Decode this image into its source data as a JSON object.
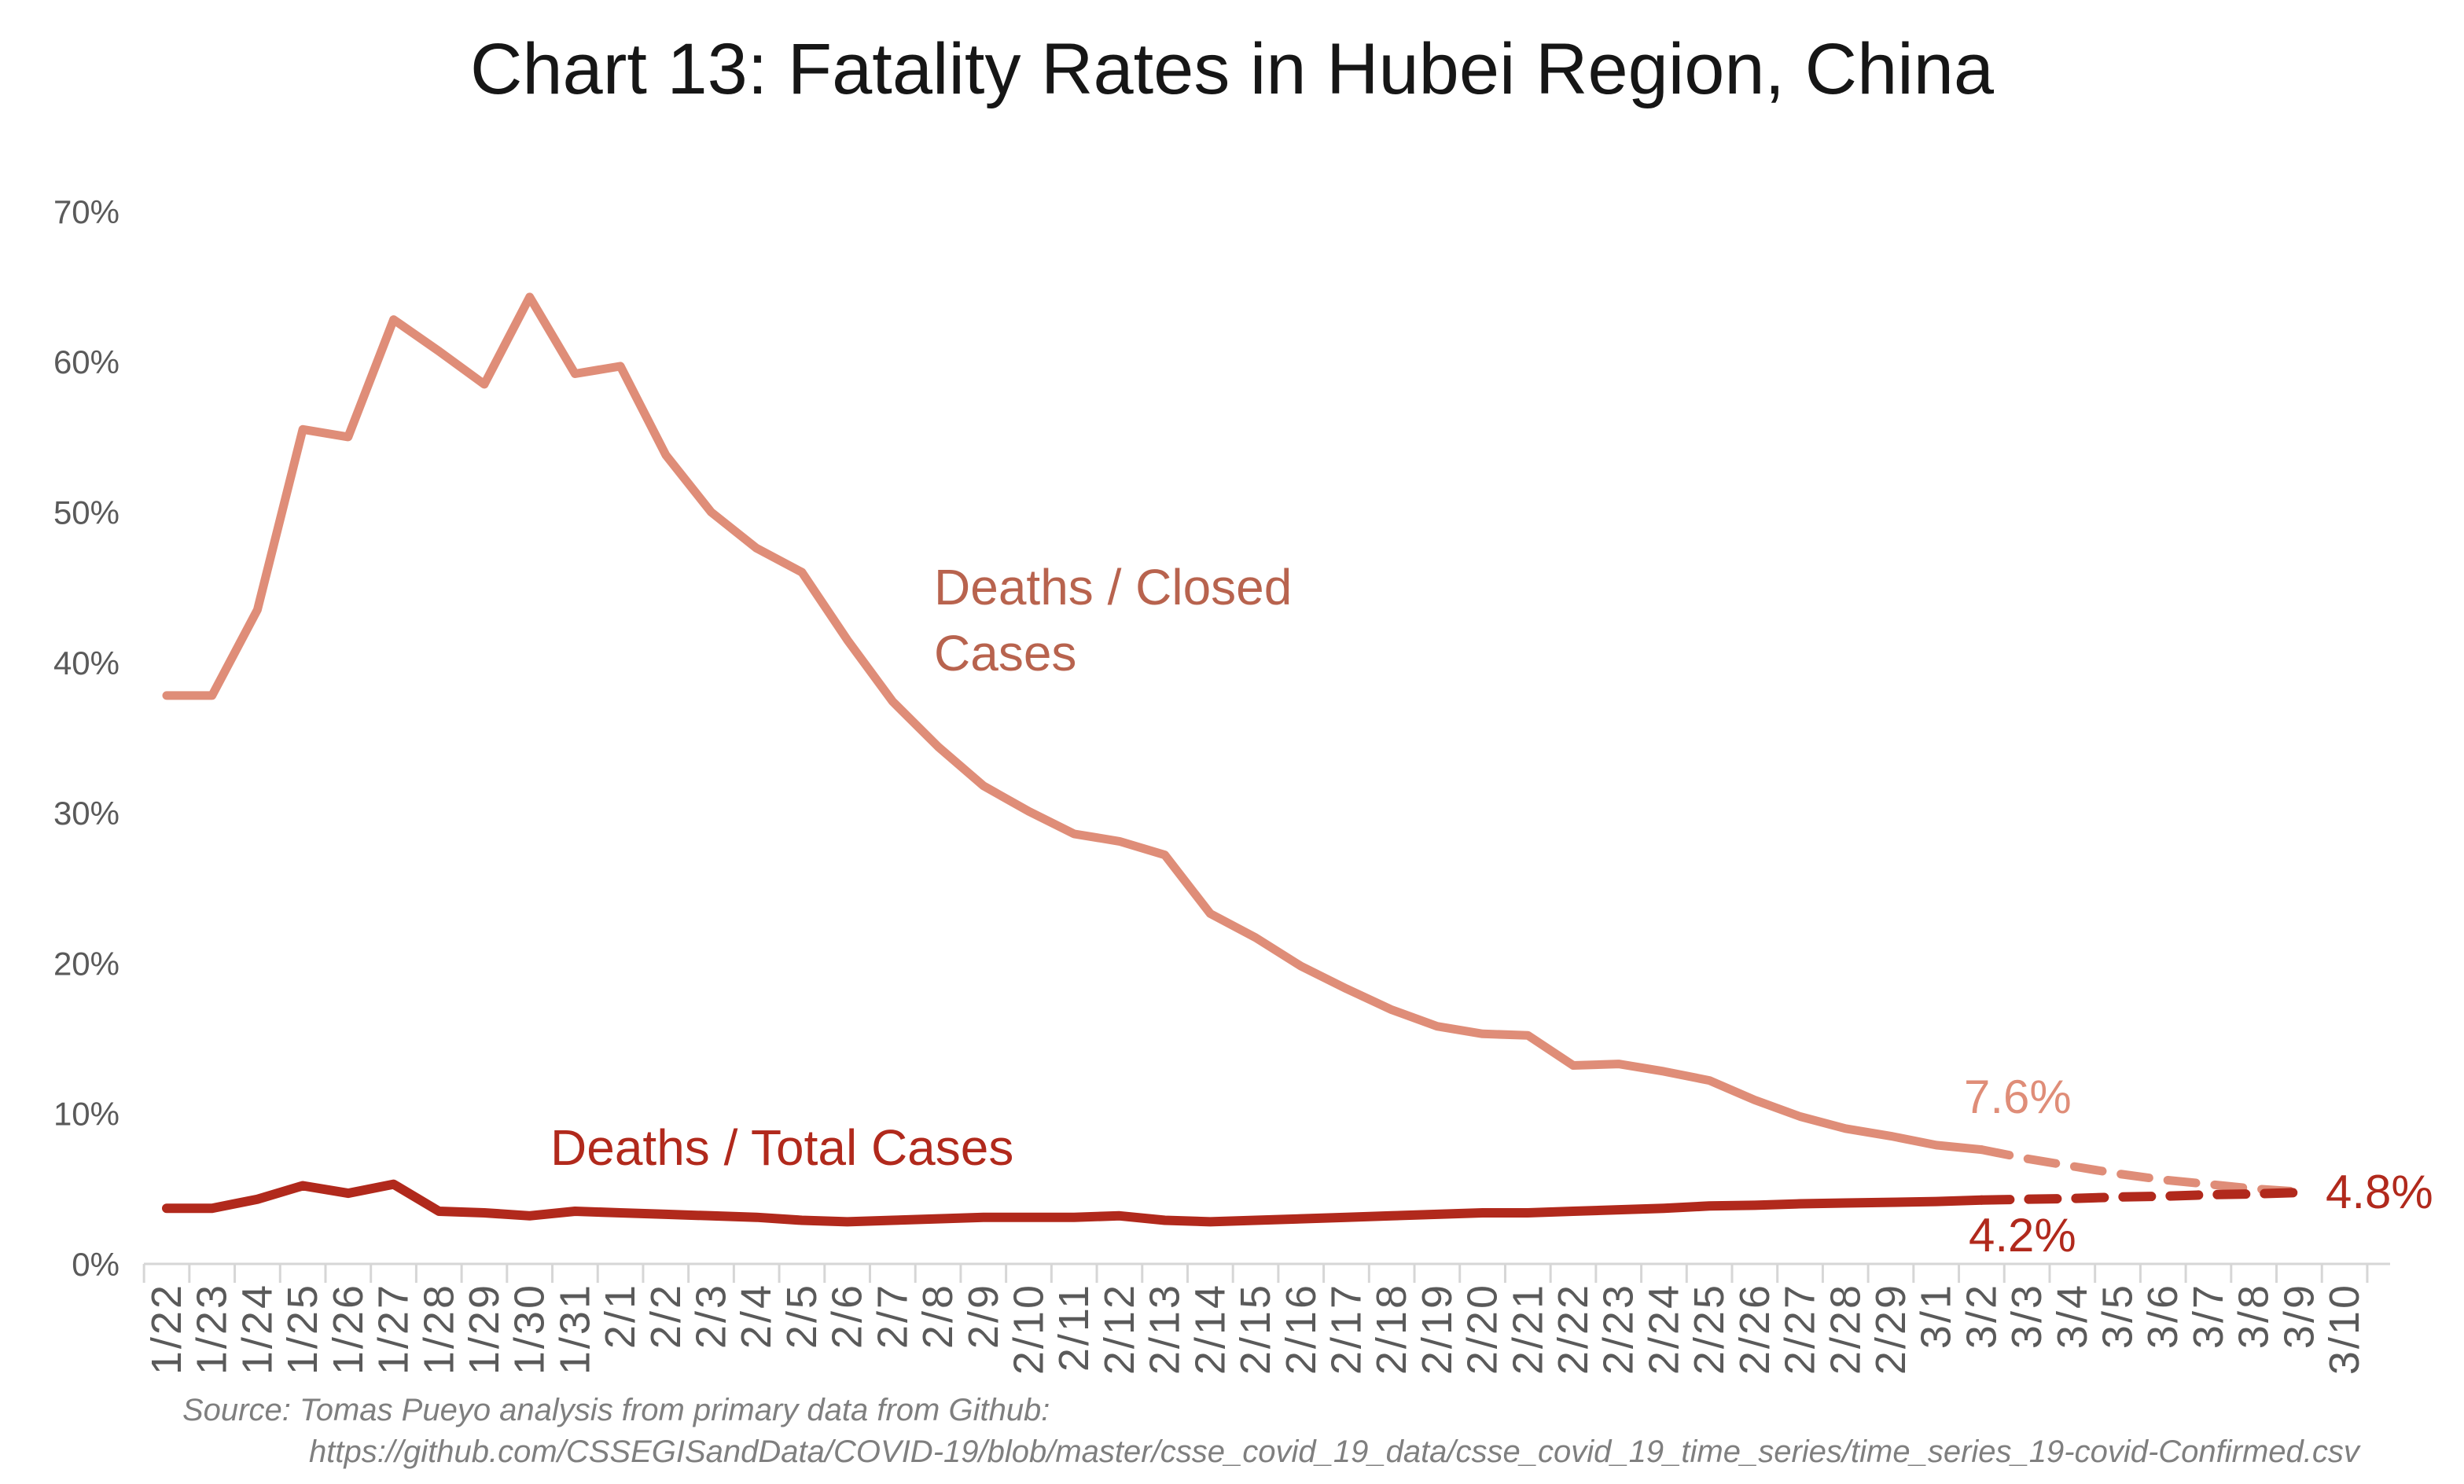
{
  "page": {
    "background": "#ffffff",
    "title_color": "#161616"
  },
  "chart_data": {
    "type": "line",
    "title": "Chart 13: Fatality Rates in Hubei Region, China",
    "xlabel": "",
    "ylabel": "",
    "ylim": [
      0,
      70
    ],
    "grid": false,
    "legend_position": "inline-labels",
    "axis_color": "#d6d6d6",
    "tick_label_color": "#5a5a5a",
    "y_axis": {
      "ticks": [
        "0%",
        "10%",
        "20%",
        "30%",
        "40%",
        "50%",
        "60%",
        "70%"
      ],
      "min": 0,
      "max": 70,
      "step": 10
    },
    "categories": [
      "1/22",
      "1/23",
      "1/24",
      "1/25",
      "1/26",
      "1/27",
      "1/28",
      "1/29",
      "1/30",
      "1/31",
      "2/1",
      "2/2",
      "2/3",
      "2/4",
      "2/5",
      "2/6",
      "2/7",
      "2/8",
      "2/9",
      "2/10",
      "2/11",
      "2/12",
      "2/13",
      "2/14",
      "2/15",
      "2/16",
      "2/17",
      "2/18",
      "2/19",
      "2/20",
      "2/21",
      "2/22",
      "2/23",
      "2/24",
      "2/25",
      "2/26",
      "2/27",
      "2/28",
      "2/29",
      "3/1",
      "3/2",
      "3/3",
      "3/4",
      "3/5",
      "3/6",
      "3/7",
      "3/8",
      "3/9",
      "3/10"
    ],
    "series": [
      {
        "name": "Deaths / Closed Cases",
        "color": "#df8d78",
        "label_color": "#b8634e",
        "stroke_width": 11,
        "solid_values": [
          37.8,
          37.8,
          43.5,
          55.5,
          55.0,
          62.8,
          60.7,
          58.5,
          64.3,
          59.2,
          59.7,
          53.8,
          50.0,
          47.6,
          46.0,
          41.5,
          37.4,
          34.4,
          31.8,
          30.1,
          28.6,
          28.1,
          27.2,
          23.3,
          21.7,
          19.8,
          18.3,
          16.9,
          15.8,
          15.3,
          15.2,
          13.2,
          13.3,
          12.8,
          12.2,
          10.9,
          9.8,
          9.0,
          8.5,
          7.9,
          7.6
        ],
        "projection_start_index": 40,
        "projection_values": [
          7.6,
          7.0,
          6.5,
          6.0,
          5.6,
          5.3,
          5.0,
          4.8
        ]
      },
      {
        "name": "Deaths / Total Cases",
        "color": "#b1291c",
        "label_color": "#b1291c",
        "stroke_width": 12,
        "solid_values": [
          3.7,
          3.7,
          4.3,
          5.2,
          4.7,
          5.3,
          3.5,
          3.4,
          3.2,
          3.5,
          3.4,
          3.3,
          3.2,
          3.1,
          2.9,
          2.8,
          2.9,
          3.0,
          3.1,
          3.1,
          3.1,
          3.2,
          2.9,
          2.8,
          2.9,
          3.0,
          3.1,
          3.2,
          3.3,
          3.4,
          3.4,
          3.5,
          3.6,
          3.7,
          3.85,
          3.9,
          4.0,
          4.05,
          4.1,
          4.15,
          4.25
        ],
        "projection_start_index": 40,
        "projection_values": [
          4.25,
          4.3,
          4.35,
          4.45,
          4.5,
          4.6,
          4.65,
          4.75
        ]
      }
    ],
    "annotations": {
      "closed_rate_end": {
        "text": "7.6%",
        "color": "#df8d78"
      },
      "total_rate_end": {
        "text": "4.2%",
        "color": "#b1291c"
      },
      "projection_convergence": {
        "text": "4.8%",
        "color": "#b1291c"
      }
    }
  },
  "source": {
    "line1": "Source: Tomas Pueyo analysis from primary data from Github:",
    "line2": "https://github.com/CSSEGISandData/COVID-19/blob/master/csse_covid_19_data/csse_covid_19_time_series/time_series_19-covid-Confirmed.csv"
  }
}
